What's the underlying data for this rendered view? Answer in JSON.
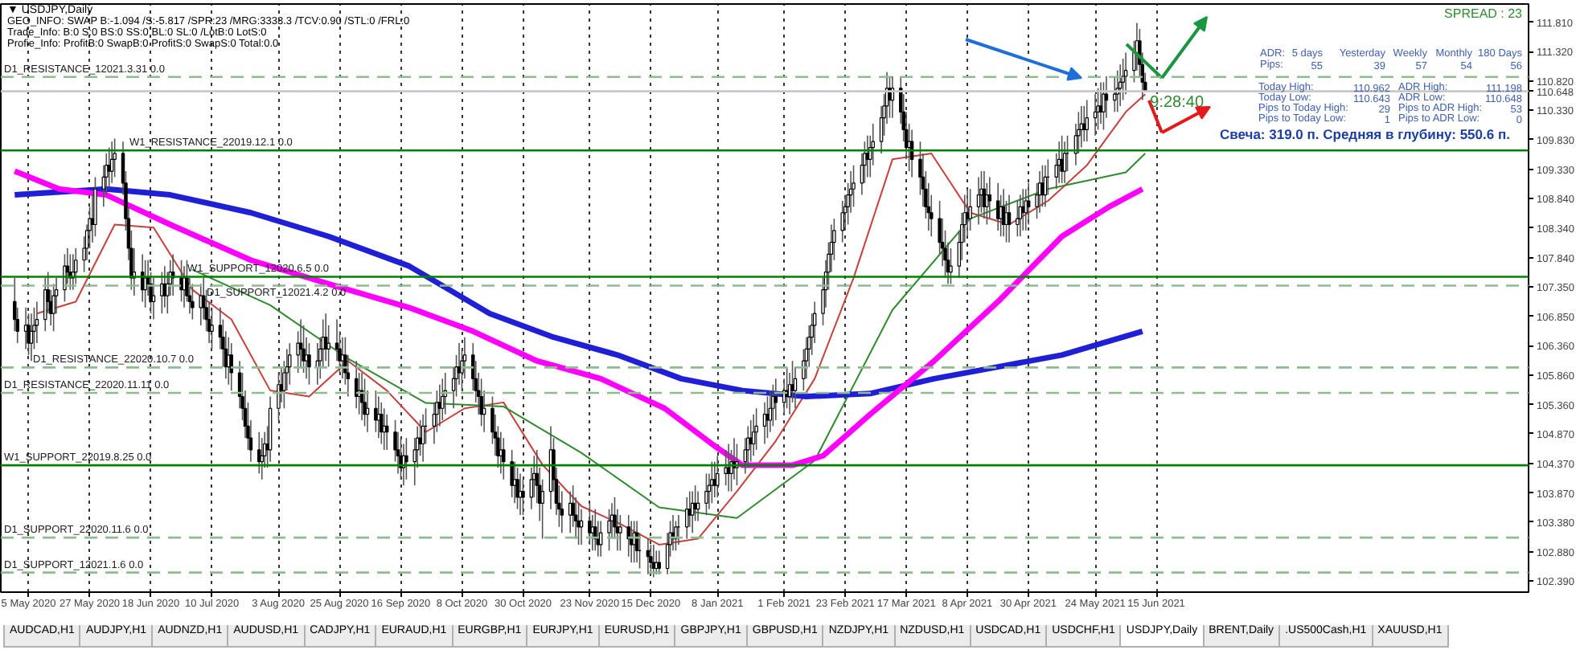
{
  "chart_data": {
    "type": "candlestick",
    "title": "▼ USDJPY,Daily",
    "x": [
      "2020-04-30",
      "2020-05-01",
      "2020-05-04",
      "2020-05-05",
      "2020-05-06",
      "2020-05-07",
      "2020-05-08",
      "2020-05-11",
      "2020-05-12",
      "2020-05-13",
      "2020-05-14",
      "2020-05-15",
      "2020-05-18",
      "2020-05-19",
      "2020-05-20",
      "2020-05-21",
      "2020-05-22",
      "2020-05-25",
      "2020-05-26",
      "2020-05-27",
      "2020-05-28",
      "2020-05-29",
      "2020-06-01",
      "2020-06-02",
      "2020-06-03",
      "2020-06-04",
      "2020-06-05",
      "2020-06-08",
      "2020-06-09",
      "2020-06-10",
      "2020-06-11",
      "2020-06-12",
      "2020-06-15",
      "2020-06-16",
      "2020-06-17",
      "2020-06-18",
      "2020-06-19",
      "2020-06-22",
      "2020-06-23",
      "2020-06-24",
      "2020-06-25",
      "2020-06-26",
      "2020-06-29",
      "2020-06-30",
      "2020-07-01",
      "2020-07-02",
      "2020-07-03",
      "2020-07-06",
      "2020-07-07",
      "2020-07-08",
      "2020-07-09",
      "2020-07-10",
      "2020-07-13",
      "2020-07-14",
      "2020-07-15",
      "2020-07-16",
      "2020-07-17",
      "2020-07-20",
      "2020-07-21",
      "2020-07-22",
      "2020-07-23",
      "2020-07-24",
      "2020-07-27",
      "2020-07-28",
      "2020-07-29",
      "2020-07-30",
      "2020-07-31",
      "2020-08-03",
      "2020-08-04",
      "2020-08-05",
      "2020-08-06",
      "2020-08-07",
      "2020-08-10",
      "2020-08-11",
      "2020-08-12",
      "2020-08-13",
      "2020-08-14",
      "2020-08-17",
      "2020-08-18",
      "2020-08-19",
      "2020-08-20",
      "2020-08-21",
      "2020-08-24",
      "2020-08-25",
      "2020-08-26",
      "2020-08-27",
      "2020-08-28",
      "2020-08-31",
      "2020-09-01",
      "2020-09-02",
      "2020-09-03",
      "2020-09-04",
      "2020-09-07",
      "2020-09-08",
      "2020-09-09",
      "2020-09-10",
      "2020-09-11",
      "2020-09-14",
      "2020-09-15",
      "2020-09-16",
      "2020-09-17",
      "2020-09-18",
      "2020-09-21",
      "2020-09-22",
      "2020-09-23",
      "2020-09-24",
      "2020-09-25",
      "2020-09-28",
      "2020-09-29",
      "2020-09-30",
      "2020-10-01",
      "2020-10-02",
      "2020-10-05",
      "2020-10-06",
      "2020-10-07",
      "2020-10-08",
      "2020-10-09",
      "2020-10-12",
      "2020-10-13",
      "2020-10-14",
      "2020-10-15",
      "2020-10-16",
      "2020-10-19",
      "2020-10-20",
      "2020-10-21",
      "2020-10-22",
      "2020-10-23",
      "2020-10-26",
      "2020-10-27",
      "2020-10-28",
      "2020-10-29",
      "2020-10-30",
      "2020-11-02",
      "2020-11-03",
      "2020-11-04",
      "2020-11-05",
      "2020-11-06",
      "2020-11-09",
      "2020-11-10",
      "2020-11-11",
      "2020-11-12",
      "2020-11-13",
      "2020-11-16",
      "2020-11-17",
      "2020-11-18",
      "2020-11-19",
      "2020-11-20",
      "2020-11-23",
      "2020-11-24",
      "2020-11-25",
      "2020-11-26",
      "2020-11-27",
      "2020-11-30",
      "2020-12-01",
      "2020-12-02",
      "2020-12-03",
      "2020-12-04",
      "2020-12-07",
      "2020-12-08",
      "2020-12-09",
      "2020-12-10",
      "2020-12-11",
      "2020-12-14",
      "2020-12-15",
      "2020-12-16",
      "2020-12-17",
      "2020-12-18",
      "2020-12-21",
      "2020-12-22",
      "2020-12-23",
      "2020-12-24",
      "2020-12-25",
      "2020-12-28",
      "2020-12-29",
      "2020-12-30",
      "2020-12-31",
      "2021-01-01",
      "2021-01-04",
      "2021-01-05",
      "2021-01-06",
      "2021-01-07",
      "2021-01-08",
      "2021-01-11",
      "2021-01-12",
      "2021-01-13",
      "2021-01-14",
      "2021-01-15",
      "2021-01-18",
      "2021-01-19",
      "2021-01-20",
      "2021-01-21",
      "2021-01-22",
      "2021-01-25",
      "2021-01-26",
      "2021-01-27",
      "2021-01-28",
      "2021-01-29",
      "2021-02-01",
      "2021-02-02",
      "2021-02-03",
      "2021-02-04",
      "2021-02-05",
      "2021-02-08",
      "2021-02-09",
      "2021-02-10",
      "2021-02-11",
      "2021-02-12",
      "2021-02-15",
      "2021-02-16",
      "2021-02-17",
      "2021-02-18",
      "2021-02-19",
      "2021-02-22",
      "2021-02-23",
      "2021-02-24",
      "2021-02-25",
      "2021-02-26",
      "2021-03-01",
      "2021-03-02",
      "2021-03-03",
      "2021-03-04",
      "2021-03-05",
      "2021-03-08",
      "2021-03-09",
      "2021-03-10",
      "2021-03-11",
      "2021-03-12",
      "2021-03-15",
      "2021-03-16",
      "2021-03-17",
      "2021-03-18",
      "2021-03-19",
      "2021-03-22",
      "2021-03-23",
      "2021-03-24",
      "2021-03-25",
      "2021-03-26",
      "2021-03-29",
      "2021-03-30",
      "2021-03-31",
      "2021-04-01",
      "2021-04-02",
      "2021-04-05",
      "2021-04-06",
      "2021-04-07",
      "2021-04-08",
      "2021-04-09",
      "2021-04-12",
      "2021-04-13",
      "2021-04-14",
      "2021-04-15",
      "2021-04-16",
      "2021-04-19",
      "2021-04-20",
      "2021-04-21",
      "2021-04-22",
      "2021-04-23",
      "2021-04-26",
      "2021-04-27",
      "2021-04-28",
      "2021-04-29",
      "2021-04-30",
      "2021-05-03",
      "2021-05-04",
      "2021-05-05",
      "2021-05-06",
      "2021-05-07",
      "2021-05-10",
      "2021-05-11",
      "2021-05-12",
      "2021-05-13",
      "2021-05-14",
      "2021-05-17",
      "2021-05-18",
      "2021-05-19",
      "2021-05-20",
      "2021-05-21",
      "2021-05-24",
      "2021-05-25",
      "2021-05-26",
      "2021-05-27",
      "2021-05-28",
      "2021-05-31",
      "2021-06-01",
      "2021-06-02",
      "2021-06-03",
      "2021-06-04",
      "2021-06-07",
      "2021-06-08",
      "2021-06-09",
      "2021-06-10",
      "2021-06-11"
    ],
    "ohlc": [
      [
        107.1,
        107.5,
        106.6,
        106.8
      ],
      [
        106.8,
        107.0,
        106.4,
        106.6
      ],
      [
        106.6,
        107.0,
        106.3,
        106.7
      ],
      [
        106.7,
        106.9,
        106.2,
        106.4
      ],
      [
        106.4,
        106.9,
        106.1,
        106.6
      ],
      [
        106.6,
        107.0,
        106.3,
        106.7
      ],
      [
        106.7,
        107.1,
        106.4,
        106.8
      ],
      [
        106.8,
        107.5,
        106.6,
        107.3
      ],
      [
        107.3,
        107.6,
        106.9,
        107.1
      ],
      [
        107.1,
        107.3,
        106.7,
        106.9
      ],
      [
        106.9,
        107.4,
        106.6,
        107.2
      ],
      [
        107.2,
        107.5,
        106.9,
        107.3
      ],
      [
        107.3,
        107.9,
        107.1,
        107.7
      ],
      [
        107.7,
        108.0,
        107.4,
        107.6
      ],
      [
        107.6,
        107.9,
        107.3,
        107.5
      ],
      [
        107.5,
        107.9,
        107.3,
        107.6
      ],
      [
        107.6,
        108.0,
        107.4,
        107.8
      ],
      [
        107.8,
        108.2,
        107.6,
        108.0
      ],
      [
        108.0,
        108.4,
        107.8,
        108.3
      ],
      [
        108.3,
        108.7,
        108.0,
        108.5
      ],
      [
        108.5,
        108.9,
        108.1,
        108.4
      ],
      [
        108.4,
        109.2,
        108.2,
        109.0
      ],
      [
        109.0,
        109.4,
        108.7,
        109.2
      ],
      [
        109.2,
        109.6,
        108.9,
        109.4
      ],
      [
        109.4,
        109.7,
        109.0,
        109.3
      ],
      [
        109.3,
        109.8,
        109.1,
        109.5
      ],
      [
        109.5,
        109.85,
        109.2,
        109.6
      ],
      [
        109.6,
        109.8,
        108.9,
        109.1
      ],
      [
        109.1,
        109.3,
        108.3,
        108.5
      ],
      [
        108.5,
        108.7,
        107.8,
        108.0
      ],
      [
        108.0,
        108.3,
        107.3,
        107.5
      ],
      [
        107.5,
        108.0,
        107.2,
        107.6
      ],
      [
        107.6,
        107.9,
        107.1,
        107.3
      ],
      [
        107.3,
        107.8,
        107.0,
        107.5
      ],
      [
        107.5,
        107.8,
        107.2,
        107.4
      ],
      [
        107.4,
        107.6,
        106.9,
        107.1
      ],
      [
        107.1,
        107.5,
        106.8,
        107.2
      ],
      [
        107.2,
        107.6,
        106.9,
        107.4
      ],
      [
        107.4,
        107.7,
        107.0,
        107.2
      ],
      [
        107.2,
        107.6,
        106.9,
        107.4
      ],
      [
        107.4,
        107.8,
        107.2,
        107.6
      ],
      [
        107.6,
        107.9,
        107.2,
        107.5
      ],
      [
        107.5,
        107.8,
        107.1,
        107.3
      ],
      [
        107.3,
        107.7,
        107.0,
        107.5
      ],
      [
        107.5,
        107.8,
        107.1,
        107.2
      ],
      [
        107.2,
        107.5,
        106.9,
        107.1
      ],
      [
        107.1,
        107.4,
        106.8,
        107.0
      ],
      [
        107.0,
        107.4,
        106.7,
        107.2
      ],
      [
        107.2,
        107.5,
        106.8,
        107.0
      ],
      [
        107.0,
        107.3,
        106.6,
        106.8
      ],
      [
        106.8,
        107.1,
        106.4,
        106.6
      ],
      [
        106.6,
        107.0,
        106.3,
        106.7
      ],
      [
        106.7,
        107.0,
        106.3,
        106.5
      ],
      [
        106.5,
        106.8,
        106.0,
        106.3
      ],
      [
        106.3,
        106.6,
        105.8,
        106.0
      ],
      [
        106.0,
        106.5,
        105.7,
        106.2
      ],
      [
        106.2,
        106.4,
        105.6,
        105.9
      ],
      [
        105.9,
        106.1,
        105.3,
        105.5
      ],
      [
        105.5,
        105.9,
        105.1,
        105.3
      ],
      [
        105.3,
        105.6,
        104.8,
        105.0
      ],
      [
        105.0,
        105.4,
        104.6,
        104.8
      ],
      [
        104.8,
        105.1,
        104.4,
        104.6
      ],
      [
        104.6,
        104.9,
        104.2,
        104.4
      ],
      [
        104.4,
        104.8,
        104.1,
        104.5
      ],
      [
        104.5,
        104.9,
        104.3,
        104.7
      ],
      [
        104.7,
        105.0,
        104.3,
        104.6
      ],
      [
        104.6,
        105.5,
        104.4,
        105.3
      ],
      [
        105.3,
        105.9,
        105.1,
        105.7
      ],
      [
        105.7,
        106.0,
        105.4,
        105.6
      ],
      [
        105.6,
        106.1,
        105.3,
        105.9
      ],
      [
        105.9,
        106.3,
        105.6,
        106.0
      ],
      [
        106.0,
        106.4,
        105.7,
        106.2
      ],
      [
        106.2,
        106.6,
        105.9,
        106.4
      ],
      [
        106.4,
        106.8,
        106.0,
        106.3
      ],
      [
        106.3,
        106.7,
        105.9,
        106.1
      ],
      [
        106.1,
        106.5,
        105.8,
        106.2
      ],
      [
        106.2,
        106.4,
        105.7,
        106.0
      ],
      [
        106.0,
        106.4,
        105.7,
        106.1
      ],
      [
        106.1,
        106.5,
        105.8,
        106.3
      ],
      [
        106.3,
        106.8,
        106.0,
        106.5
      ],
      [
        106.5,
        106.9,
        106.1,
        106.3
      ],
      [
        106.3,
        106.7,
        106.0,
        106.4
      ],
      [
        106.4,
        106.8,
        106.1,
        106.3
      ],
      [
        106.3,
        106.6,
        105.9,
        106.1
      ],
      [
        106.1,
        106.5,
        105.8,
        106.2
      ],
      [
        106.2,
        106.5,
        105.7,
        105.9
      ],
      [
        105.9,
        106.2,
        105.5,
        105.8
      ],
      [
        105.8,
        106.1,
        105.3,
        105.5
      ],
      [
        105.5,
        105.9,
        105.2,
        105.6
      ],
      [
        105.6,
        105.9,
        105.1,
        105.4
      ],
      [
        105.4,
        105.8,
        105.0,
        105.2
      ],
      [
        105.2,
        105.6,
        104.9,
        105.3
      ],
      [
        105.3,
        105.6,
        104.9,
        105.1
      ],
      [
        105.1,
        105.5,
        104.8,
        105.2
      ],
      [
        105.2,
        105.4,
        104.7,
        104.9
      ],
      [
        104.9,
        105.3,
        104.6,
        105.0
      ],
      [
        105.0,
        105.2,
        104.6,
        104.9
      ],
      [
        104.9,
        105.1,
        104.4,
        104.6
      ],
      [
        104.6,
        104.9,
        104.2,
        104.5
      ],
      [
        104.5,
        104.8,
        104.1,
        104.3
      ],
      [
        104.3,
        104.7,
        104.0,
        104.5
      ],
      [
        104.5,
        104.8,
        104.1,
        104.4
      ],
      [
        104.4,
        104.8,
        104.0,
        104.6
      ],
      [
        104.6,
        105.0,
        104.3,
        104.8
      ],
      [
        104.8,
        105.1,
        104.5,
        104.7
      ],
      [
        104.7,
        105.2,
        104.4,
        105.0
      ],
      [
        105.0,
        105.3,
        104.7,
        105.0
      ],
      [
        105.0,
        105.4,
        104.7,
        105.2
      ],
      [
        105.2,
        105.6,
        104.9,
        105.4
      ],
      [
        105.4,
        105.7,
        105.0,
        105.3
      ],
      [
        105.3,
        105.8,
        105.1,
        105.5
      ],
      [
        105.5,
        105.9,
        105.2,
        105.6
      ],
      [
        105.6,
        106.0,
        105.3,
        105.8
      ],
      [
        105.8,
        106.2,
        105.5,
        106.0
      ],
      [
        106.0,
        106.4,
        105.7,
        105.9
      ],
      [
        105.9,
        106.3,
        105.6,
        106.1
      ],
      [
        106.1,
        106.5,
        105.8,
        106.2
      ],
      [
        106.2,
        106.4,
        105.6,
        105.8
      ],
      [
        105.8,
        106.1,
        105.4,
        105.6
      ],
      [
        105.6,
        105.9,
        105.2,
        105.5
      ],
      [
        105.5,
        105.8,
        105.0,
        105.2
      ],
      [
        105.2,
        105.6,
        104.9,
        105.3
      ],
      [
        105.3,
        105.5,
        104.7,
        104.9
      ],
      [
        104.9,
        105.2,
        104.5,
        104.8
      ],
      [
        104.8,
        105.0,
        104.3,
        104.5
      ],
      [
        104.5,
        104.9,
        104.2,
        104.6
      ],
      [
        104.6,
        104.8,
        104.1,
        104.4
      ],
      [
        104.4,
        104.6,
        103.8,
        104.0
      ],
      [
        104.0,
        104.4,
        103.7,
        104.1
      ],
      [
        104.1,
        104.3,
        103.6,
        103.8
      ],
      [
        103.8,
        104.2,
        103.5,
        103.9
      ],
      [
        103.9,
        104.1,
        103.5,
        103.8
      ],
      [
        103.8,
        104.3,
        103.6,
        104.1
      ],
      [
        104.1,
        104.5,
        103.8,
        104.2
      ],
      [
        104.2,
        104.6,
        103.7,
        104.0
      ],
      [
        104.0,
        104.3,
        103.4,
        103.7
      ],
      [
        103.7,
        104.1,
        103.1,
        103.9
      ],
      [
        103.9,
        105.0,
        103.6,
        104.6
      ],
      [
        104.6,
        104.8,
        103.9,
        104.1
      ],
      [
        104.1,
        104.3,
        103.5,
        103.7
      ],
      [
        103.7,
        104.0,
        103.3,
        103.6
      ],
      [
        103.6,
        103.9,
        103.2,
        103.5
      ],
      [
        103.5,
        103.9,
        103.2,
        103.7
      ],
      [
        103.7,
        104.0,
        103.3,
        103.5
      ],
      [
        103.5,
        103.8,
        103.1,
        103.4
      ],
      [
        103.4,
        103.7,
        103.0,
        103.3
      ],
      [
        103.3,
        103.6,
        103.0,
        103.4
      ],
      [
        103.4,
        103.7,
        103.0,
        103.2
      ],
      [
        103.2,
        103.5,
        102.9,
        103.3
      ],
      [
        103.3,
        103.6,
        102.9,
        103.1
      ],
      [
        103.1,
        103.4,
        102.8,
        103.0
      ],
      [
        103.0,
        103.4,
        102.8,
        103.2
      ],
      [
        103.2,
        103.6,
        102.9,
        103.4
      ],
      [
        103.4,
        103.7,
        103.1,
        103.5
      ],
      [
        103.5,
        103.8,
        103.1,
        103.3
      ],
      [
        103.3,
        103.6,
        102.9,
        103.2
      ],
      [
        103.2,
        103.5,
        102.9,
        103.3
      ],
      [
        103.3,
        103.5,
        102.8,
        103.1
      ],
      [
        103.1,
        103.4,
        102.7,
        103.0
      ],
      [
        103.0,
        103.4,
        102.7,
        103.2
      ],
      [
        103.2,
        103.4,
        102.7,
        102.9
      ],
      [
        102.9,
        103.2,
        102.6,
        102.9
      ],
      [
        102.9,
        103.1,
        102.5,
        102.8
      ],
      [
        102.8,
        103.0,
        102.5,
        102.7
      ],
      [
        102.7,
        103.0,
        102.45,
        102.6
      ],
      [
        102.6,
        102.9,
        102.5,
        102.7
      ],
      [
        102.7,
        102.9,
        102.5,
        102.6
      ],
      [
        102.6,
        103.2,
        102.5,
        103.0
      ],
      [
        103.0,
        103.4,
        102.8,
        103.2
      ],
      [
        103.2,
        103.5,
        102.9,
        103.1
      ],
      [
        103.1,
        103.4,
        102.9,
        103.3
      ],
      [
        103.3,
        103.5,
        103.0,
        103.3
      ],
      [
        103.3,
        103.8,
        103.1,
        103.6
      ],
      [
        103.6,
        103.9,
        103.3,
        103.5
      ],
      [
        103.5,
        103.9,
        103.2,
        103.7
      ],
      [
        103.7,
        104.0,
        103.4,
        103.6
      ],
      [
        103.6,
        103.9,
        103.4,
        103.7
      ],
      [
        103.7,
        104.2,
        103.5,
        103.9
      ],
      [
        103.9,
        104.2,
        103.6,
        104.0
      ],
      [
        104.0,
        104.4,
        103.7,
        104.1
      ],
      [
        104.1,
        104.4,
        103.8,
        104.0
      ],
      [
        104.0,
        104.5,
        103.8,
        104.2
      ],
      [
        104.2,
        104.6,
        104.0,
        104.3
      ],
      [
        104.3,
        104.7,
        103.9,
        104.2
      ],
      [
        104.2,
        104.6,
        103.9,
        104.4
      ],
      [
        104.4,
        104.8,
        104.1,
        104.3
      ],
      [
        104.3,
        104.7,
        104.0,
        104.4
      ],
      [
        104.4,
        104.8,
        104.2,
        104.6
      ],
      [
        104.6,
        105.0,
        104.3,
        104.8
      ],
      [
        104.8,
        105.1,
        104.4,
        104.7
      ],
      [
        104.7,
        105.2,
        104.5,
        104.9
      ],
      [
        104.9,
        105.3,
        104.6,
        105.0
      ],
      [
        105.0,
        105.4,
        104.7,
        105.2
      ],
      [
        105.2,
        105.5,
        104.8,
        105.1
      ],
      [
        105.1,
        105.6,
        104.9,
        105.3
      ],
      [
        105.3,
        105.7,
        105.0,
        105.5
      ],
      [
        105.5,
        105.8,
        105.1,
        105.4
      ],
      [
        105.4,
        105.8,
        105.2,
        105.6
      ],
      [
        105.6,
        106.0,
        105.3,
        105.5
      ],
      [
        105.5,
        105.9,
        105.2,
        105.7
      ],
      [
        105.7,
        106.1,
        105.4,
        105.6
      ],
      [
        105.6,
        106.0,
        105.3,
        105.8
      ],
      [
        105.8,
        106.3,
        105.6,
        106.1
      ],
      [
        106.1,
        106.5,
        105.8,
        106.3
      ],
      [
        106.3,
        106.7,
        106.0,
        106.5
      ],
      [
        106.5,
        106.9,
        106.2,
        106.7
      ],
      [
        106.7,
        107.1,
        106.4,
        106.9
      ],
      [
        106.9,
        107.5,
        106.7,
        107.3
      ],
      [
        107.3,
        107.8,
        107.0,
        107.6
      ],
      [
        107.6,
        108.1,
        107.3,
        107.9
      ],
      [
        107.9,
        108.4,
        107.6,
        108.1
      ],
      [
        108.1,
        108.5,
        107.8,
        108.3
      ],
      [
        108.3,
        108.8,
        108.1,
        108.6
      ],
      [
        108.6,
        108.9,
        108.3,
        108.7
      ],
      [
        108.7,
        109.1,
        108.4,
        108.9
      ],
      [
        108.9,
        109.3,
        108.6,
        109.0
      ],
      [
        109.0,
        109.4,
        108.7,
        109.1
      ],
      [
        109.1,
        109.6,
        108.9,
        109.4
      ],
      [
        109.4,
        109.8,
        109.1,
        109.6
      ],
      [
        109.6,
        109.9,
        109.2,
        109.5
      ],
      [
        109.5,
        109.9,
        109.2,
        109.7
      ],
      [
        109.7,
        110.1,
        109.4,
        109.8
      ],
      [
        109.8,
        110.4,
        109.6,
        110.2
      ],
      [
        110.2,
        110.6,
        109.9,
        110.4
      ],
      [
        110.4,
        110.97,
        110.1,
        110.7
      ],
      [
        110.7,
        110.9,
        110.2,
        110.5
      ],
      [
        110.5,
        110.9,
        110.2,
        110.7
      ],
      [
        110.7,
        110.9,
        110.1,
        110.3
      ],
      [
        110.3,
        110.6,
        109.8,
        110.0
      ],
      [
        110.0,
        110.3,
        109.5,
        109.7
      ],
      [
        109.7,
        110.1,
        109.3,
        109.8
      ],
      [
        109.8,
        110.0,
        109.2,
        109.5
      ],
      [
        109.5,
        109.8,
        108.9,
        109.2
      ],
      [
        109.2,
        109.6,
        108.7,
        109.0
      ],
      [
        109.0,
        109.3,
        108.5,
        108.7
      ],
      [
        108.7,
        109.1,
        108.3,
        108.6
      ],
      [
        108.6,
        108.9,
        108.2,
        108.5
      ],
      [
        108.5,
        108.8,
        107.9,
        108.1
      ],
      [
        108.1,
        108.5,
        107.7,
        108.0
      ],
      [
        108.0,
        108.3,
        107.5,
        107.8
      ],
      [
        107.8,
        108.1,
        107.4,
        107.6
      ],
      [
        107.6,
        108.0,
        107.4,
        107.7
      ],
      [
        107.7,
        108.3,
        107.5,
        108.1
      ],
      [
        108.1,
        108.6,
        107.8,
        108.4
      ],
      [
        108.4,
        108.9,
        108.1,
        108.6
      ],
      [
        108.6,
        109.0,
        108.2,
        108.5
      ],
      [
        108.5,
        109.0,
        108.3,
        108.7
      ],
      [
        108.7,
        109.2,
        108.4,
        108.9
      ],
      [
        108.9,
        109.3,
        108.6,
        109.0
      ],
      [
        109.0,
        109.3,
        108.5,
        108.7
      ],
      [
        108.7,
        109.1,
        108.4,
        108.9
      ],
      [
        108.9,
        109.2,
        108.5,
        108.8
      ],
      [
        108.8,
        109.1,
        108.3,
        108.5
      ],
      [
        108.5,
        108.9,
        108.2,
        108.7
      ],
      [
        108.7,
        109.0,
        108.2,
        108.4
      ],
      [
        108.4,
        108.8,
        108.1,
        108.6
      ],
      [
        108.6,
        108.9,
        108.1,
        108.4
      ],
      [
        108.4,
        108.8,
        108.2,
        108.5
      ],
      [
        108.5,
        108.9,
        108.2,
        108.7
      ],
      [
        108.7,
        109.0,
        108.3,
        108.6
      ],
      [
        108.6,
        109.0,
        108.3,
        108.8
      ],
      [
        108.8,
        109.1,
        108.4,
        108.7
      ],
      [
        108.7,
        109.1,
        108.5,
        108.9
      ],
      [
        108.9,
        109.3,
        108.6,
        109.1
      ],
      [
        109.1,
        109.4,
        108.7,
        108.9
      ],
      [
        108.9,
        109.4,
        108.7,
        109.2
      ],
      [
        109.2,
        109.5,
        108.9,
        109.2
      ],
      [
        109.2,
        109.6,
        109.0,
        109.4
      ],
      [
        109.4,
        109.8,
        109.1,
        109.5
      ],
      [
        109.5,
        109.9,
        109.1,
        109.3
      ],
      [
        109.3,
        109.8,
        109.1,
        109.6
      ],
      [
        109.6,
        109.9,
        109.3,
        109.6
      ],
      [
        109.6,
        110.1,
        109.4,
        109.9
      ],
      [
        109.9,
        110.3,
        109.6,
        110.0
      ],
      [
        110.0,
        110.4,
        109.7,
        110.1
      ],
      [
        110.1,
        110.4,
        109.8,
        110.0
      ],
      [
        110.0,
        110.5,
        109.8,
        110.2
      ],
      [
        110.2,
        110.6,
        109.9,
        110.3
      ],
      [
        110.3,
        110.7,
        110.0,
        110.4
      ],
      [
        110.4,
        110.8,
        110.1,
        110.3
      ],
      [
        110.3,
        110.8,
        110.0,
        110.6
      ],
      [
        110.6,
        110.9,
        110.2,
        110.5
      ],
      [
        110.5,
        110.9,
        110.3,
        110.6
      ],
      [
        110.6,
        111.0,
        110.3,
        110.7
      ],
      [
        110.7,
        111.1,
        110.4,
        110.8
      ],
      [
        110.8,
        111.2,
        110.5,
        110.9
      ],
      [
        110.9,
        111.3,
        110.6,
        111.0
      ],
      [
        111.0,
        111.5,
        110.8,
        111.3
      ],
      [
        111.3,
        111.8,
        111.0,
        111.5
      ],
      [
        111.5,
        111.7,
        110.9,
        111.1
      ],
      [
        111.1,
        111.3,
        110.5,
        110.8
      ],
      [
        110.8,
        110.96,
        110.64,
        110.65
      ]
    ],
    "series": [
      {
        "type": "line",
        "color": "#c8403c",
        "x": [
          "2020-05-08",
          "2020-05-22",
          "2020-06-05",
          "2020-06-19",
          "2020-07-03",
          "2020-07-17",
          "2020-07-31",
          "2020-08-14",
          "2020-08-28",
          "2020-09-11",
          "2020-09-25",
          "2020-10-09",
          "2020-10-23",
          "2020-11-06",
          "2020-11-20",
          "2020-12-04",
          "2020-12-18",
          "2021-01-01",
          "2021-01-15",
          "2021-01-29",
          "2021-02-12",
          "2021-02-26",
          "2021-03-12",
          "2021-03-26",
          "2021-04-09",
          "2021-04-23",
          "2021-05-07",
          "2021-05-21",
          "2021-06-04",
          "2021-06-11"
        ],
        "values": [
          106.9,
          107.1,
          108.4,
          108.35,
          107.3,
          106.8,
          105.6,
          105.5,
          106.1,
          105.6,
          104.9,
          105.3,
          105.4,
          104.35,
          103.65,
          103.35,
          103.0,
          103.1,
          103.9,
          104.75,
          105.8,
          107.5,
          109.5,
          109.6,
          108.6,
          108.4,
          108.8,
          109.4,
          110.3,
          110.6
        ]
      },
      {
        "type": "line",
        "color": "#2e8b2e",
        "x": [
          "2020-07-03",
          "2020-07-31",
          "2020-08-28",
          "2020-09-25",
          "2020-10-23",
          "2020-11-20",
          "2020-12-18",
          "2021-01-15",
          "2021-02-12",
          "2021-03-12",
          "2021-04-09",
          "2021-05-07",
          "2021-06-04",
          "2021-06-11"
        ],
        "values": [
          107.64,
          107.04,
          106.14,
          105.39,
          105.33,
          104.55,
          103.63,
          103.45,
          104.42,
          106.96,
          108.5,
          109.0,
          109.28,
          109.6
        ]
      },
      {
        "type": "line",
        "color": "#1f1fd6",
        "x": [
          "2020-04-30",
          "2020-06-02",
          "2020-06-25",
          "2020-07-24",
          "2020-08-21",
          "2020-09-19",
          "2020-10-18",
          "2020-11-10",
          "2020-12-03",
          "2020-12-26",
          "2021-01-17",
          "2021-02-09",
          "2021-03-04",
          "2021-03-27",
          "2021-04-19",
          "2021-05-12",
          "2021-06-10"
        ],
        "values": [
          108.9,
          109.0,
          108.9,
          108.6,
          108.2,
          107.7,
          106.9,
          106.5,
          106.2,
          105.8,
          105.6,
          105.5,
          105.55,
          105.8,
          106.0,
          106.2,
          106.6
        ]
      },
      {
        "type": "line",
        "color": "#ff00ff",
        "x": [
          "2020-04-30",
          "2020-05-16",
          "2020-06-02",
          "2020-06-25",
          "2020-07-24",
          "2020-08-21",
          "2020-09-19",
          "2020-10-12",
          "2020-11-04",
          "2020-11-27",
          "2020-12-20",
          "2021-01-06",
          "2021-01-17",
          "2021-02-04",
          "2021-02-15",
          "2021-03-04",
          "2021-03-27",
          "2021-04-19",
          "2021-05-12",
          "2021-05-29",
          "2021-06-10"
        ],
        "values": [
          109.3,
          109.0,
          108.9,
          108.4,
          107.8,
          107.4,
          107.0,
          106.6,
          106.1,
          105.8,
          105.3,
          104.7,
          104.34,
          104.34,
          104.5,
          105.2,
          106.1,
          107.1,
          108.2,
          108.7,
          109.0
        ]
      }
    ],
    "xlim": [
      "2020-04-25",
      "2021-10-27"
    ],
    "ylim": [
      102.2,
      112.12
    ],
    "xticks": [
      {
        "value": "2020-05-05",
        "label": "5 May 2020"
      },
      {
        "value": "2020-05-27",
        "label": "27 May 2020"
      },
      {
        "value": "2020-06-18",
        "label": "18 Jun 2020"
      },
      {
        "value": "2020-07-10",
        "label": "10 Jul 2020"
      },
      {
        "value": "2020-08-03",
        "label": "3 Aug 2020"
      },
      {
        "value": "2020-08-25",
        "label": "25 Aug 2020"
      },
      {
        "value": "2020-09-16",
        "label": "16 Sep 2020"
      },
      {
        "value": "2020-10-08",
        "label": "8 Oct 2020"
      },
      {
        "value": "2020-10-30",
        "label": "30 Oct 2020"
      },
      {
        "value": "2020-11-23",
        "label": "23 Nov 2020"
      },
      {
        "value": "2020-12-15",
        "label": "15 Dec 2020"
      },
      {
        "value": "2021-01-08",
        "label": "8 Jan 2021"
      },
      {
        "value": "2021-02-01",
        "label": "1 Feb 2021"
      },
      {
        "value": "2021-02-23",
        "label": "23 Feb 2021"
      },
      {
        "value": "2021-03-17",
        "label": "17 Mar 2021"
      },
      {
        "value": "2021-04-08",
        "label": "8 Apr 2021"
      },
      {
        "value": "2021-04-30",
        "label": "30 Apr 2021"
      },
      {
        "value": "2021-05-24",
        "label": "24 May 2021"
      },
      {
        "value": "2021-06-15",
        "label": "15 Jun 2021"
      }
    ],
    "yticks": [
      {
        "value": 111.81,
        "label": "111.810"
      },
      {
        "value": 111.32,
        "label": "111.320"
      },
      {
        "value": 110.82,
        "label": "110.820"
      },
      {
        "value": 110.648,
        "label": "110.648"
      },
      {
        "value": 110.33,
        "label": "110.330"
      },
      {
        "value": 109.83,
        "label": "109.830"
      },
      {
        "value": 109.33,
        "label": "109.330"
      },
      {
        "value": 108.84,
        "label": "108.840"
      },
      {
        "value": 108.34,
        "label": "108.340"
      },
      {
        "value": 107.84,
        "label": "107.840"
      },
      {
        "value": 107.35,
        "label": "107.350"
      },
      {
        "value": 106.85,
        "label": "106.850"
      },
      {
        "value": 106.36,
        "label": "106.360"
      },
      {
        "value": 105.86,
        "label": "105.860"
      },
      {
        "value": 105.36,
        "label": "105.360"
      },
      {
        "value": 104.87,
        "label": "104.870"
      },
      {
        "value": 104.37,
        "label": "104.370"
      },
      {
        "value": 103.87,
        "label": "103.870"
      },
      {
        "value": 103.38,
        "label": "103.380"
      },
      {
        "value": 102.88,
        "label": "102.880"
      },
      {
        "value": 102.39,
        "label": "102.390"
      }
    ],
    "grid": "x",
    "ref_lines": [
      {
        "axis": "y",
        "value": 110.89,
        "label": "D1_RESISTANCE_12021.3.31 0.0",
        "color": "#8fbc8f",
        "line_style": "dashed"
      },
      {
        "axis": "y",
        "value": 110.648,
        "color": "#c8c8c8"
      },
      {
        "axis": "y",
        "value": 109.65,
        "label": "W1_RESISTANCE_22019.12.1 0.0",
        "color": "#008000"
      },
      {
        "axis": "y",
        "value": 107.52,
        "label": "W1_SUPPORT_12020.6.5 0.0",
        "color": "#008000"
      },
      {
        "axis": "y",
        "value": 107.37,
        "label": "D1_SUPPORT_12021.4.2 0.0",
        "color": "#8fbc8f",
        "line_style": "dashed"
      },
      {
        "axis": "y",
        "value": 105.99,
        "label": "D1_RESISTANCE_22020.10.7 0.0",
        "color": "#8fbc8f",
        "line_style": "dashed"
      },
      {
        "axis": "y",
        "value": 105.56,
        "label": "D1_RESISTANCE_22020.11.11 0.0",
        "color": "#8fbc8f",
        "line_style": "dashed"
      },
      {
        "axis": "y",
        "value": 104.34,
        "label": "W1_SUPPORT_22019.8.25 0.0",
        "color": "#008000"
      },
      {
        "axis": "y",
        "value": 103.12,
        "label": "D1_SUPPORT_22020.11.6 0.0",
        "color": "#8fbc8f",
        "line_style": "dashed"
      },
      {
        "axis": "y",
        "value": 102.53,
        "label": "D1_SUPPORT_12021.1.6 0.0",
        "color": "#8fbc8f",
        "line_style": "dashed"
      }
    ],
    "annotations": [
      "GEO_INFO: SWAP B:-1.094 /S:-5.817 /SPR:23 /MRG:3333.3 /TCV:0.90 /STL:0 /FRL:0",
      "Trade_Info: B:0 S:0 BS:0 SS:0 BL:0 SL:0 /LotB:0 LotS:0",
      "Profie_Info: ProfitB:0 SwapB:0 ProfitS:0 SwapS:0 Total:0.0",
      "SPREAD : 23",
      "ADR:",
      "5 days",
      "Yesterday",
      "Weekly",
      "Monthly",
      "180 Days",
      "Pips:",
      "55",
      "39",
      "57",
      "54",
      "56",
      "Today High:",
      "110.962",
      "ADR High:",
      "111.198",
      "Today Low:",
      "110.643",
      "ADR Low:",
      "110.648",
      "Pips to Today High:",
      "29",
      "Pips to ADR High:",
      "53",
      "Pips to Today Low:",
      "1",
      "Pips to ADR Low:",
      "0",
      "Свеча: 319.0 п. Средняя в глубину: 550.6 п.",
      {
        "text": "9:28:40",
        "x": "2021-06-11",
        "y": 110.45
      },
      "AUDCAD,H1",
      "AUDJPY,H1",
      "AUDNZD,H1",
      "AUDUSD,H1",
      "CADJPY,H1",
      "EURAUD,H1",
      "EURGBP,H1",
      "EURJPY,H1",
      "EURUSD,H1",
      "GBPJPY,H1",
      "GBPUSD,H1",
      "NZDJPY,H1",
      "NZDUSD,H1",
      "USDCAD,H1",
      "USDCHF,H1",
      "USDJPY,Daily",
      "BRENT,Daily",
      ".US500Cash,H1",
      "XAUUSD,H1"
    ]
  }
}
